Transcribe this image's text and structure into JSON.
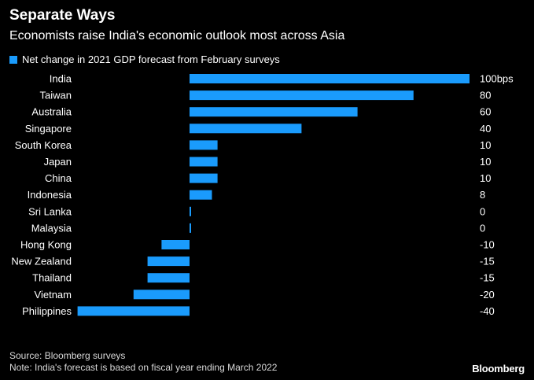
{
  "header": {
    "title": "Separate Ways",
    "subtitle": "Economists raise India's economic outlook most across Asia"
  },
  "colors": {
    "bar": "#1a9bfc",
    "background": "#000000",
    "text": "#ffffff"
  },
  "chart_data": {
    "type": "bar",
    "orientation": "horizontal",
    "categories": [
      "India",
      "Taiwan",
      "Australia",
      "Singapore",
      "South Korea",
      "Japan",
      "China",
      "Indonesia",
      "Sri Lanka",
      "Malaysia",
      "Hong Kong",
      "New Zealand",
      "Thailand",
      "Vietnam",
      "Philippines"
    ],
    "series": [
      {
        "name": "Net change in 2021 GDP forecast from February surveys",
        "values": [
          100,
          80,
          60,
          40,
          10,
          10,
          10,
          8,
          0,
          0,
          -10,
          -15,
          -15,
          -20,
          -40
        ]
      }
    ],
    "value_labels": [
      "100bps",
      "80",
      "60",
      "40",
      "10",
      "10",
      "10",
      "8",
      "0",
      "0",
      "-10",
      "-15",
      "-15",
      "-20",
      "-40"
    ],
    "xlim": [
      -40,
      100
    ],
    "grid": false,
    "legend_position": "top-left"
  },
  "footer": {
    "source": "Source: Bloomberg surveys",
    "note": "Note: India's forecast is based on fiscal year ending March 2022",
    "brand": "Bloomberg"
  }
}
